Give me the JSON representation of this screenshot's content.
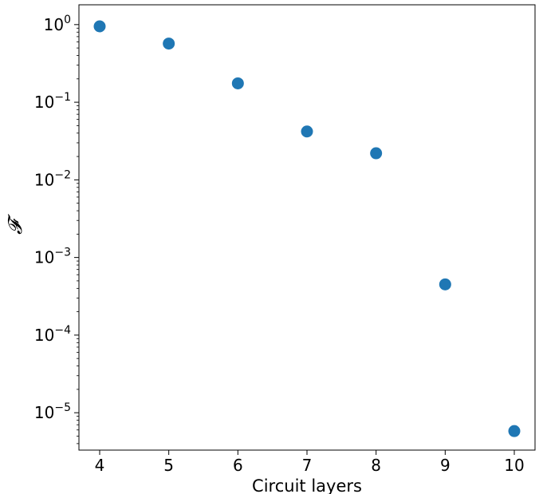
{
  "chart_data": {
    "type": "scatter",
    "xlabel": "Circuit layers",
    "ylabel": "𝓕",
    "y_scale": "log",
    "xlim": [
      3.7,
      10.3
    ],
    "ylim": [
      3.3e-06,
      1.8
    ],
    "x_ticks": [
      4,
      5,
      6,
      7,
      8,
      9,
      10
    ],
    "y_ticks": [
      {
        "value": 1,
        "base": "10",
        "exp": "0"
      },
      {
        "value": 0.1,
        "base": "10",
        "exp": "−1"
      },
      {
        "value": 0.01,
        "base": "10",
        "exp": "−2"
      },
      {
        "value": 0.001,
        "base": "10",
        "exp": "−3"
      },
      {
        "value": 0.0001,
        "base": "10",
        "exp": "−4"
      },
      {
        "value": 1e-05,
        "base": "10",
        "exp": "−5"
      }
    ],
    "grid": false,
    "marker_color": "#1f77b4",
    "series": [
      {
        "x": [
          4,
          5,
          6,
          7,
          8,
          9,
          10
        ],
        "y": [
          0.95,
          0.57,
          0.175,
          0.042,
          0.022,
          0.00045,
          5.8e-06
        ]
      }
    ]
  }
}
